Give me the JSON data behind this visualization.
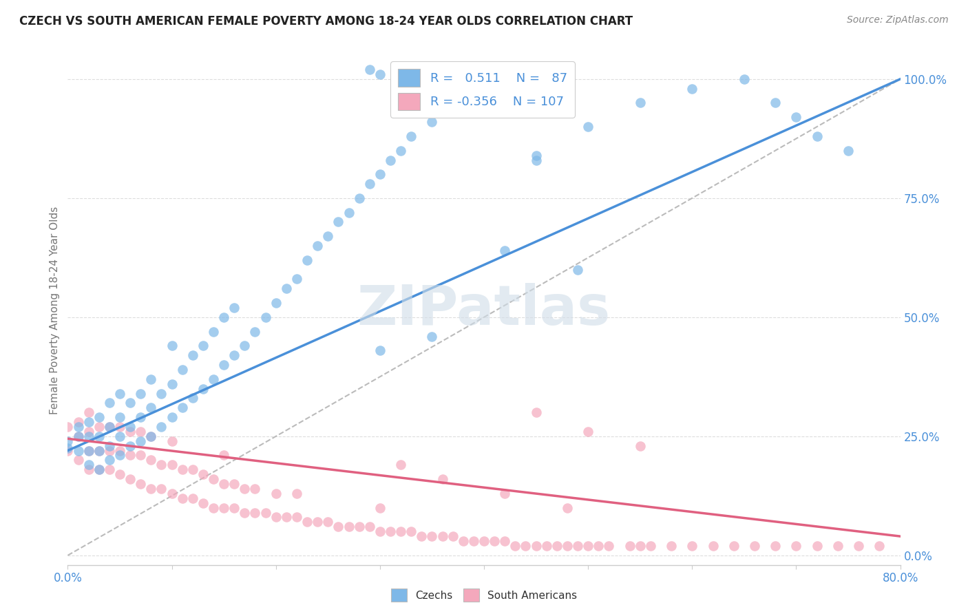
{
  "title": "CZECH VS SOUTH AMERICAN FEMALE POVERTY AMONG 18-24 YEAR OLDS CORRELATION CHART",
  "source": "Source: ZipAtlas.com",
  "ylabel": "Female Poverty Among 18-24 Year Olds",
  "right_yticks": [
    0.0,
    0.25,
    0.5,
    0.75,
    1.0
  ],
  "right_yticklabels": [
    "0.0%",
    "25.0%",
    "50.0%",
    "75.0%",
    "100.0%"
  ],
  "czechs_R": 0.511,
  "czechs_N": 87,
  "south_americans_R": -0.356,
  "south_americans_N": 107,
  "czechs_color": "#7eb8e8",
  "south_americans_color": "#f4a8bc",
  "czechs_line_color": "#4a90d9",
  "south_americans_line_color": "#e06080",
  "diagonal_line_color": "#bbbbbb",
  "watermark_color": "#d0dde8",
  "background_color": "#ffffff",
  "title_color": "#222222",
  "legend_text_color": "#4a90d9",
  "xmin": 0.0,
  "xmax": 0.8,
  "ymin": -0.02,
  "ymax": 1.05,
  "czechs_scatter_x": [
    0.0,
    0.0,
    0.01,
    0.01,
    0.01,
    0.02,
    0.02,
    0.02,
    0.02,
    0.03,
    0.03,
    0.03,
    0.03,
    0.04,
    0.04,
    0.04,
    0.04,
    0.05,
    0.05,
    0.05,
    0.05,
    0.06,
    0.06,
    0.06,
    0.07,
    0.07,
    0.07,
    0.08,
    0.08,
    0.08,
    0.09,
    0.09,
    0.1,
    0.1,
    0.1,
    0.11,
    0.11,
    0.12,
    0.12,
    0.13,
    0.13,
    0.14,
    0.14,
    0.15,
    0.15,
    0.16,
    0.16,
    0.17,
    0.18,
    0.19,
    0.2,
    0.21,
    0.22,
    0.23,
    0.24,
    0.25,
    0.26,
    0.27,
    0.28,
    0.29,
    0.3,
    0.3,
    0.31,
    0.32,
    0.33,
    0.35,
    0.35,
    0.37,
    0.38,
    0.4,
    0.42,
    0.45,
    0.5,
    0.55,
    0.6,
    0.65,
    0.68,
    0.7,
    0.72,
    0.75,
    0.29,
    0.3,
    0.32,
    0.33,
    0.34,
    0.45,
    0.49
  ],
  "czechs_scatter_y": [
    0.225,
    0.24,
    0.22,
    0.25,
    0.27,
    0.19,
    0.22,
    0.25,
    0.28,
    0.18,
    0.22,
    0.25,
    0.29,
    0.2,
    0.23,
    0.27,
    0.32,
    0.21,
    0.25,
    0.29,
    0.34,
    0.23,
    0.27,
    0.32,
    0.24,
    0.29,
    0.34,
    0.25,
    0.31,
    0.37,
    0.27,
    0.34,
    0.29,
    0.36,
    0.44,
    0.31,
    0.39,
    0.33,
    0.42,
    0.35,
    0.44,
    0.37,
    0.47,
    0.4,
    0.5,
    0.42,
    0.52,
    0.44,
    0.47,
    0.5,
    0.53,
    0.56,
    0.58,
    0.62,
    0.65,
    0.67,
    0.7,
    0.72,
    0.75,
    0.78,
    0.8,
    0.43,
    0.83,
    0.85,
    0.88,
    0.91,
    0.46,
    0.94,
    0.96,
    0.98,
    0.64,
    0.84,
    0.9,
    0.95,
    0.98,
    1.0,
    0.95,
    0.92,
    0.88,
    0.85,
    1.02,
    1.01,
    1.02,
    1.01,
    1.0,
    0.83,
    0.6
  ],
  "south_americans_scatter_x": [
    0.0,
    0.0,
    0.01,
    0.01,
    0.01,
    0.02,
    0.02,
    0.02,
    0.02,
    0.03,
    0.03,
    0.03,
    0.04,
    0.04,
    0.04,
    0.05,
    0.05,
    0.05,
    0.06,
    0.06,
    0.06,
    0.07,
    0.07,
    0.07,
    0.08,
    0.08,
    0.08,
    0.09,
    0.09,
    0.1,
    0.1,
    0.1,
    0.11,
    0.11,
    0.12,
    0.12,
    0.13,
    0.13,
    0.14,
    0.14,
    0.15,
    0.15,
    0.15,
    0.16,
    0.16,
    0.17,
    0.17,
    0.18,
    0.18,
    0.19,
    0.2,
    0.2,
    0.21,
    0.22,
    0.22,
    0.23,
    0.24,
    0.25,
    0.26,
    0.27,
    0.28,
    0.29,
    0.3,
    0.3,
    0.31,
    0.32,
    0.33,
    0.34,
    0.35,
    0.36,
    0.37,
    0.38,
    0.39,
    0.4,
    0.41,
    0.42,
    0.43,
    0.44,
    0.45,
    0.46,
    0.47,
    0.48,
    0.49,
    0.5,
    0.51,
    0.52,
    0.54,
    0.55,
    0.56,
    0.58,
    0.6,
    0.62,
    0.64,
    0.66,
    0.68,
    0.7,
    0.72,
    0.74,
    0.76,
    0.78,
    0.45,
    0.5,
    0.55,
    0.32,
    0.36,
    0.42,
    0.48
  ],
  "south_americans_scatter_y": [
    0.22,
    0.27,
    0.2,
    0.25,
    0.28,
    0.18,
    0.22,
    0.26,
    0.3,
    0.18,
    0.22,
    0.27,
    0.18,
    0.22,
    0.27,
    0.17,
    0.22,
    0.27,
    0.16,
    0.21,
    0.26,
    0.15,
    0.21,
    0.26,
    0.14,
    0.2,
    0.25,
    0.14,
    0.19,
    0.13,
    0.19,
    0.24,
    0.12,
    0.18,
    0.12,
    0.18,
    0.11,
    0.17,
    0.1,
    0.16,
    0.1,
    0.15,
    0.21,
    0.1,
    0.15,
    0.09,
    0.14,
    0.09,
    0.14,
    0.09,
    0.08,
    0.13,
    0.08,
    0.08,
    0.13,
    0.07,
    0.07,
    0.07,
    0.06,
    0.06,
    0.06,
    0.06,
    0.05,
    0.1,
    0.05,
    0.05,
    0.05,
    0.04,
    0.04,
    0.04,
    0.04,
    0.03,
    0.03,
    0.03,
    0.03,
    0.03,
    0.02,
    0.02,
    0.02,
    0.02,
    0.02,
    0.02,
    0.02,
    0.02,
    0.02,
    0.02,
    0.02,
    0.02,
    0.02,
    0.02,
    0.02,
    0.02,
    0.02,
    0.02,
    0.02,
    0.02,
    0.02,
    0.02,
    0.02,
    0.02,
    0.3,
    0.26,
    0.23,
    0.19,
    0.16,
    0.13,
    0.1
  ],
  "czech_trend_x0": 0.0,
  "czech_trend_x1": 0.8,
  "czech_trend_y0": 0.22,
  "czech_trend_y1": 1.0,
  "sa_trend_x0": 0.0,
  "sa_trend_x1": 0.8,
  "sa_trend_y0": 0.245,
  "sa_trend_y1": 0.04
}
